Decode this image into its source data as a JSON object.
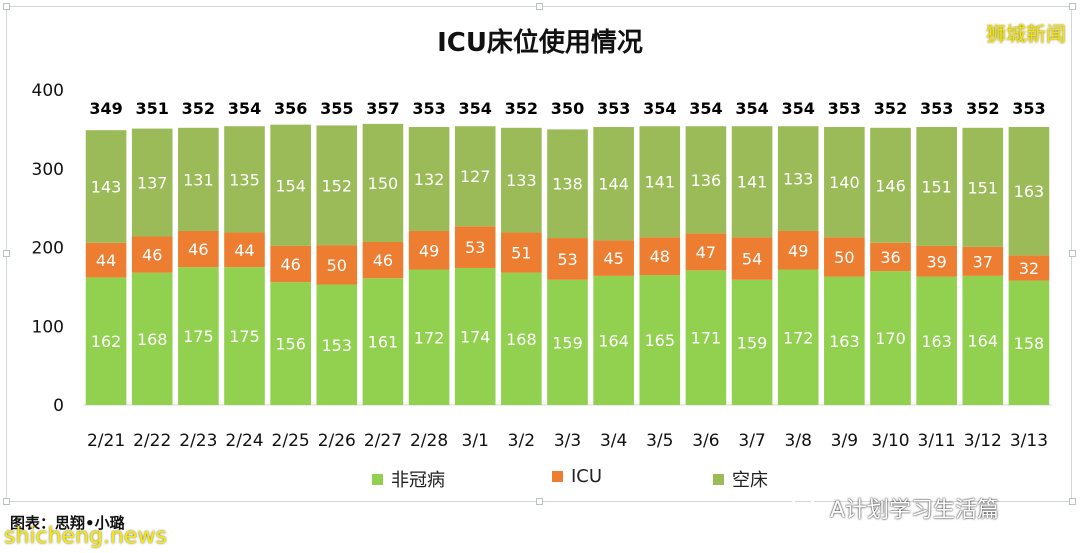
{
  "chart_data": {
    "type": "bar",
    "stacked": true,
    "title": "ICU床位使用情况",
    "categories": [
      "2/21",
      "2/22",
      "2/23",
      "2/24",
      "2/25",
      "2/26",
      "2/27",
      "2/28",
      "3/1",
      "3/2",
      "3/3",
      "3/4",
      "3/5",
      "3/6",
      "3/7",
      "3/8",
      "3/9",
      "3/10",
      "3/11",
      "3/12",
      "3/13"
    ],
    "series": [
      {
        "name": "非冠病",
        "color": "#92d050",
        "values": [
          162,
          168,
          175,
          175,
          156,
          153,
          161,
          172,
          174,
          168,
          159,
          164,
          165,
          171,
          159,
          172,
          163,
          170,
          163,
          164,
          158
        ]
      },
      {
        "name": "ICU",
        "color": "#ed7d31",
        "values": [
          44,
          46,
          46,
          44,
          46,
          50,
          46,
          49,
          53,
          51,
          53,
          45,
          48,
          47,
          54,
          49,
          50,
          36,
          39,
          37,
          32
        ]
      },
      {
        "name": "空床",
        "color": "#9bbb59",
        "values": [
          143,
          137,
          131,
          135,
          154,
          152,
          150,
          132,
          127,
          133,
          138,
          144,
          141,
          136,
          141,
          133,
          140,
          146,
          151,
          151,
          163
        ]
      }
    ],
    "totals": [
      349,
      351,
      352,
      354,
      356,
      355,
      357,
      353,
      354,
      352,
      350,
      353,
      354,
      354,
      354,
      354,
      353,
      352,
      353,
      352,
      353
    ],
    "ylim": [
      0,
      400
    ],
    "yticks": [
      0,
      100,
      200,
      300,
      400
    ],
    "grid": false,
    "legend": "bottom"
  },
  "watermarks": {
    "corner_logo": "狮城新闻",
    "site": "shicheng.news",
    "account": "A计划学习生活篇"
  },
  "credit": "图表：思翔•小璐"
}
